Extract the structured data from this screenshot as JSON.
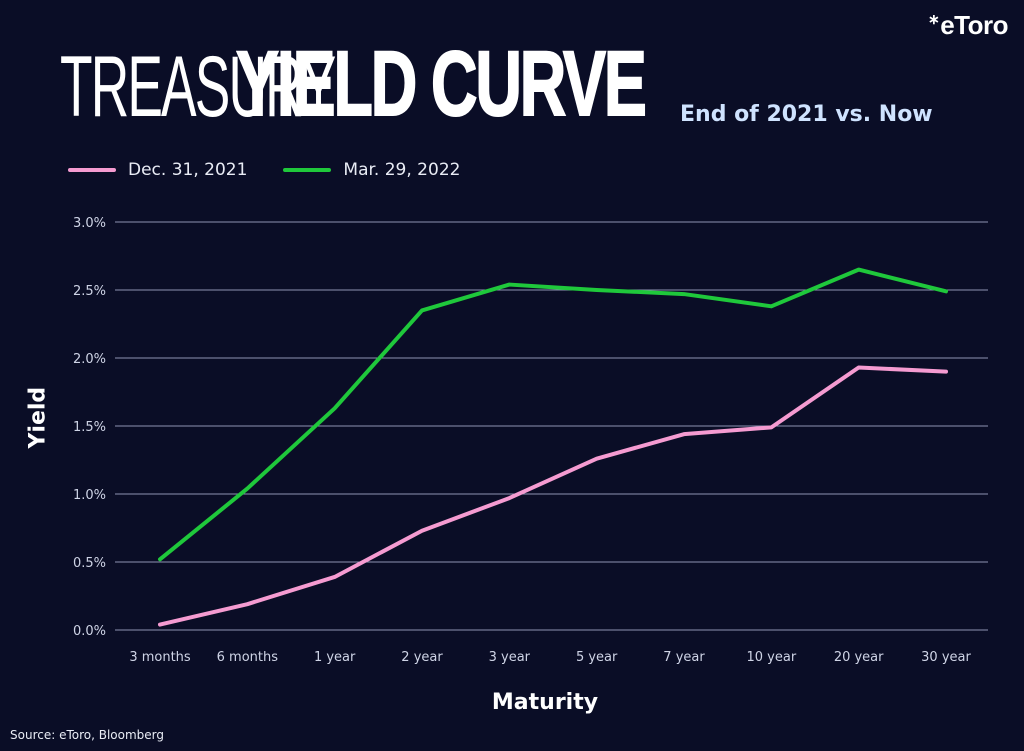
{
  "header": {
    "title_light": "TREASURY",
    "title_bold": "YIELD CURVE",
    "subtitle": "End of 2021 vs. Now",
    "logo": "eToro"
  },
  "footer": {
    "source": "Source: eToro, Bloomberg"
  },
  "colors": {
    "background": "#0a0d26",
    "series_2021": "#f59bd1",
    "series_2022": "#1fc83b",
    "grid": "#8e93b3"
  },
  "chart_data": {
    "type": "line",
    "title": "TREASURY YIELD CURVE",
    "subtitle": "End of 2021 vs. Now",
    "xlabel": "Maturity",
    "ylabel": "Yield",
    "categories": [
      "3 months",
      "6 months",
      "1 year",
      "2 year",
      "3 year",
      "5 year",
      "7 year",
      "10 year",
      "20 year",
      "30 year"
    ],
    "ylim": [
      0,
      3.0
    ],
    "yticks": [
      "0.0%",
      "0.5%",
      "1.0%",
      "1.5%",
      "2.0%",
      "2.5%",
      "3.0%"
    ],
    "grid": "horizontal",
    "legend_position": "top-left",
    "series": [
      {
        "name": "Dec. 31, 2021",
        "color": "#f59bd1",
        "values": [
          0.04,
          0.19,
          0.39,
          0.73,
          0.97,
          1.26,
          1.44,
          1.49,
          1.93,
          1.9
        ]
      },
      {
        "name": "Mar. 29, 2022",
        "color": "#1fc83b",
        "values": [
          0.52,
          1.04,
          1.63,
          2.35,
          2.54,
          2.5,
          2.47,
          2.38,
          2.65,
          2.49
        ]
      }
    ]
  }
}
